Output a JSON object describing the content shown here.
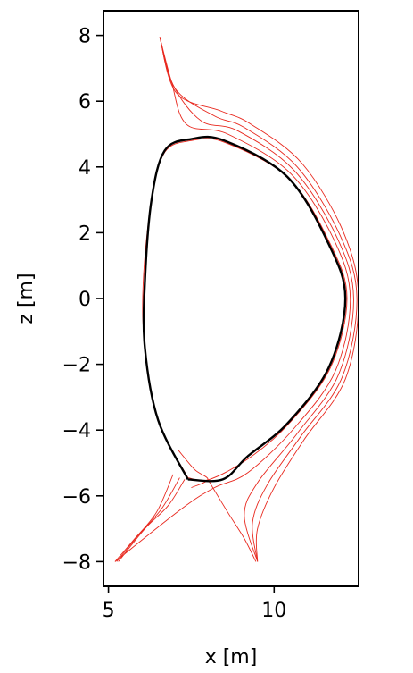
{
  "chart_data": {
    "type": "line",
    "xlabel": "x [m]",
    "ylabel": "z [m]",
    "xlim": [
      4.85,
      12.55
    ],
    "ylim": [
      -8.75,
      8.75
    ],
    "xticks": [
      5,
      10
    ],
    "yticks": [
      -8,
      -6,
      -4,
      -2,
      0,
      2,
      4,
      6,
      8
    ],
    "xtick_labels": [
      "5",
      "10"
    ],
    "ytick_labels": [
      "−8",
      "−6",
      "−4",
      "−2",
      "0",
      "2",
      "4",
      "6",
      "8"
    ],
    "grid": false,
    "colors": {
      "boundary": "#000000",
      "flux": "#e8281e"
    },
    "series": [
      {
        "role": "separatrix-boundary",
        "color": "#000000",
        "points": [
          [
            7.4,
            -5.5
          ],
          [
            6.5,
            -3.7
          ],
          [
            6.1,
            -1.5
          ],
          [
            6.1,
            0.5
          ],
          [
            6.3,
            3
          ],
          [
            6.7,
            4.5
          ],
          [
            7.5,
            4.85
          ],
          [
            8.5,
            4.8
          ],
          [
            10.4,
            3.7
          ],
          [
            11.65,
            1.65
          ],
          [
            12.15,
            0
          ],
          [
            11.65,
            -2.1
          ],
          [
            10.4,
            -3.8
          ],
          [
            9.2,
            -4.8
          ],
          [
            8.45,
            -5.5
          ],
          [
            7.4,
            -5.5
          ]
        ]
      },
      {
        "role": "flux-inner",
        "color": "#e8281e",
        "points": [
          [
            7.4,
            -5.45
          ],
          [
            6.5,
            -3.7
          ],
          [
            6.1,
            -1.5
          ],
          [
            6.05,
            0.5
          ],
          [
            6.3,
            3
          ],
          [
            6.7,
            4.45
          ],
          [
            7.5,
            4.8
          ],
          [
            8.5,
            4.75
          ],
          [
            10.45,
            3.65
          ],
          [
            11.7,
            1.65
          ],
          [
            12.2,
            0
          ],
          [
            11.7,
            -2.1
          ],
          [
            10.45,
            -3.8
          ],
          [
            9.25,
            -4.85
          ],
          [
            8.05,
            -5.5
          ],
          [
            7.4,
            -5.45
          ]
        ]
      },
      {
        "role": "flux-upper-open",
        "color": "#e8281e",
        "points": [
          [
            6.55,
            7.95
          ],
          [
            6.9,
            6.6
          ],
          [
            7.35,
            5.3
          ],
          [
            8.6,
            5.0
          ],
          [
            10.5,
            3.8
          ],
          [
            11.8,
            1.8
          ],
          [
            12.3,
            0
          ],
          [
            11.85,
            -2.2
          ],
          [
            10.6,
            -3.95
          ],
          [
            9.2,
            -5.3
          ],
          [
            8.2,
            -5.75
          ],
          [
            7.2,
            -6.4
          ],
          [
            5.2,
            -8.0
          ]
        ]
      },
      {
        "role": "flux-upper-open",
        "color": "#e8281e",
        "points": [
          [
            6.55,
            7.95
          ],
          [
            6.95,
            6.5
          ],
          [
            7.8,
            5.4
          ],
          [
            8.9,
            5.1
          ],
          [
            10.6,
            3.9
          ],
          [
            11.9,
            1.85
          ],
          [
            12.4,
            0
          ],
          [
            11.95,
            -2.3
          ],
          [
            10.7,
            -4.1
          ],
          [
            9.5,
            -5.6
          ],
          [
            9.1,
            -6.6
          ],
          [
            9.5,
            -8.0
          ]
        ]
      },
      {
        "role": "flux-upper-open",
        "color": "#e8281e",
        "points": [
          [
            6.55,
            7.95
          ],
          [
            7.0,
            6.4
          ],
          [
            8.2,
            5.55
          ],
          [
            9.1,
            5.2
          ],
          [
            10.7,
            4.0
          ],
          [
            12.0,
            1.9
          ],
          [
            12.5,
            0
          ],
          [
            12.05,
            -2.4
          ],
          [
            10.8,
            -4.2
          ],
          [
            9.8,
            -5.65
          ],
          [
            9.35,
            -6.8
          ],
          [
            9.5,
            -8.0
          ]
        ]
      },
      {
        "role": "flux-upper-open",
        "color": "#e8281e",
        "points": [
          [
            6.55,
            7.95
          ],
          [
            7.05,
            6.25
          ],
          [
            8.4,
            5.7
          ],
          [
            9.3,
            5.3
          ],
          [
            10.85,
            4.1
          ],
          [
            12.1,
            2.0
          ],
          [
            12.55,
            0
          ],
          [
            12.15,
            -2.45
          ],
          [
            10.9,
            -4.3
          ],
          [
            10.0,
            -5.75
          ],
          [
            9.5,
            -7.0
          ],
          [
            9.5,
            -8.0
          ]
        ]
      },
      {
        "role": "flux-lower-left",
        "color": "#e8281e",
        "points": [
          [
            7.3,
            -5.5
          ],
          [
            6.8,
            -6.3
          ],
          [
            6.1,
            -7.0
          ],
          [
            5.3,
            -8.0
          ]
        ]
      },
      {
        "role": "flux-lower-left",
        "color": "#e8281e",
        "points": [
          [
            7.15,
            -5.45
          ],
          [
            6.6,
            -6.4
          ],
          [
            5.9,
            -7.2
          ],
          [
            5.25,
            -8.0
          ]
        ]
      },
      {
        "role": "flux-lower-left",
        "color": "#e8281e",
        "points": [
          [
            6.95,
            -5.35
          ],
          [
            6.45,
            -6.5
          ],
          [
            5.75,
            -7.35
          ],
          [
            5.2,
            -8.0
          ]
        ]
      },
      {
        "role": "flux-x-point-leg",
        "color": "#e8281e",
        "points": [
          [
            8.0,
            -5.5
          ],
          [
            8.6,
            -6.5
          ],
          [
            9.1,
            -7.3
          ],
          [
            9.45,
            -8.0
          ]
        ]
      },
      {
        "role": "flux-x-point-leg",
        "color": "#e8281e",
        "points": [
          [
            7.1,
            -4.6
          ],
          [
            7.6,
            -5.2
          ],
          [
            8.0,
            -5.5
          ],
          [
            7.5,
            -5.75
          ]
        ]
      }
    ]
  }
}
